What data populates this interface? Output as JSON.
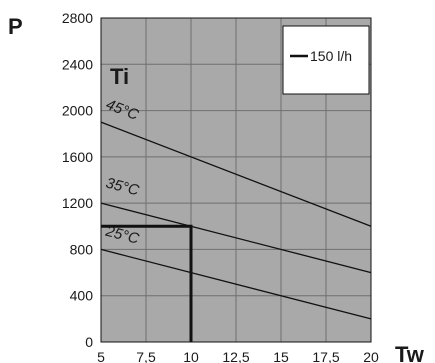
{
  "chart_data": {
    "type": "line",
    "panel_label": "Ti",
    "xlabel": "Tw",
    "ylabel": "P",
    "xlim": [
      5,
      20
    ],
    "ylim": [
      0,
      2800
    ],
    "x_ticks": [
      "5",
      "7,5",
      "10",
      "12,5",
      "15",
      "17,5",
      "20"
    ],
    "x_tick_values": [
      5,
      7.5,
      10,
      12.5,
      15,
      17.5,
      20
    ],
    "y_ticks": [
      "0",
      "400",
      "800",
      "1200",
      "1600",
      "2000",
      "2400",
      "2800"
    ],
    "y_tick_values": [
      0,
      400,
      800,
      1200,
      1600,
      2000,
      2400,
      2800
    ],
    "grid": true,
    "legend": {
      "position": "top-right",
      "entries": [
        "150 l/h"
      ]
    },
    "series": [
      {
        "label": "45°C",
        "x": [
          5,
          20
        ],
        "y": [
          1900,
          1000
        ]
      },
      {
        "label": "35°C",
        "x": [
          5,
          20
        ],
        "y": [
          1200,
          600
        ]
      },
      {
        "label": "25°C",
        "x": [
          5,
          20
        ],
        "y": [
          800,
          200
        ]
      }
    ],
    "reading_guide": {
      "x": 10,
      "y": 1000
    },
    "colors": {
      "plot_background": "#a9a9a9",
      "grid": "#6f6f6f",
      "line": "#111111"
    }
  }
}
